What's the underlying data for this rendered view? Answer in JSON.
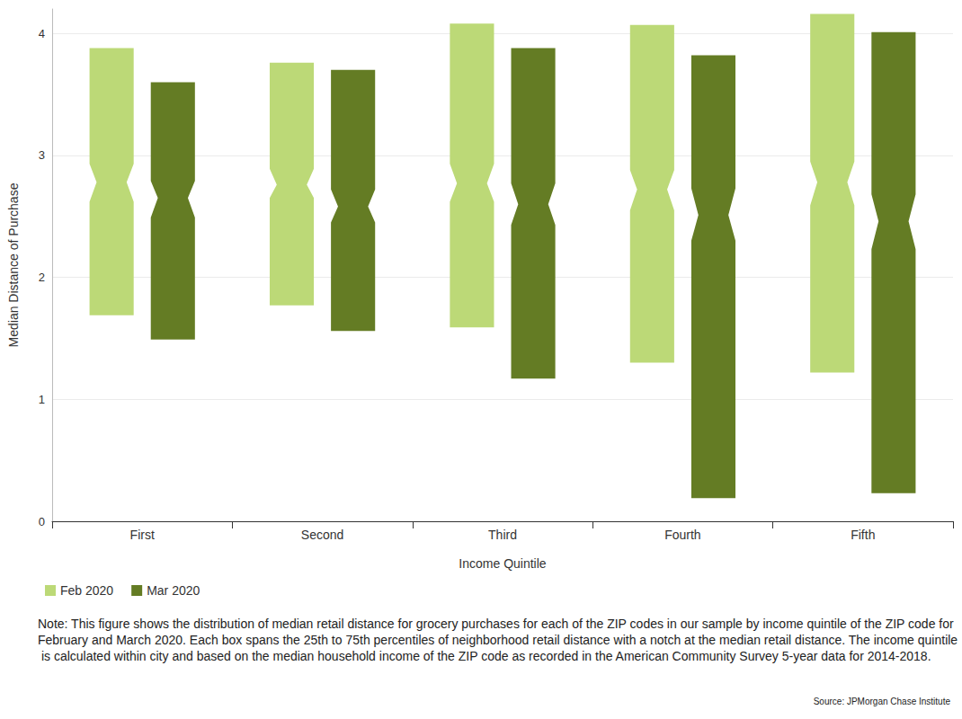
{
  "chart_data": {
    "type": "boxplot",
    "x_label": "Income Quintile",
    "y_label": "Median Distance of Purchase",
    "categories": [
      "First",
      "Second",
      "Third",
      "Fourth",
      "Fifth"
    ],
    "series": [
      {
        "name": "Feb 2020",
        "color": "#bcd977",
        "values": [
          {
            "q1": 1.69,
            "notch_low": 2.62,
            "median": 2.78,
            "notch_high": 2.93,
            "q3": 3.88
          },
          {
            "q1": 1.77,
            "notch_low": 2.65,
            "median": 2.76,
            "notch_high": 2.89,
            "q3": 3.76
          },
          {
            "q1": 1.59,
            "notch_low": 2.62,
            "median": 2.77,
            "notch_high": 2.93,
            "q3": 4.08
          },
          {
            "q1": 1.3,
            "notch_low": 2.55,
            "median": 2.72,
            "notch_high": 2.88,
            "q3": 4.07
          },
          {
            "q1": 1.22,
            "notch_low": 2.59,
            "median": 2.78,
            "notch_high": 2.95,
            "q3": 4.16
          }
        ]
      },
      {
        "name": "Mar 2020",
        "color": "#647c24",
        "values": [
          {
            "q1": 1.49,
            "notch_low": 2.49,
            "median": 2.65,
            "notch_high": 2.79,
            "q3": 3.6
          },
          {
            "q1": 1.56,
            "notch_low": 2.45,
            "median": 2.58,
            "notch_high": 2.72,
            "q3": 3.7
          },
          {
            "q1": 1.17,
            "notch_low": 2.43,
            "median": 2.6,
            "notch_high": 2.77,
            "q3": 3.88
          },
          {
            "q1": 0.19,
            "notch_low": 2.3,
            "median": 2.51,
            "notch_high": 2.73,
            "q3": 3.82
          },
          {
            "q1": 0.23,
            "notch_low": 2.23,
            "median": 2.46,
            "notch_high": 2.68,
            "q3": 4.01
          }
        ]
      }
    ],
    "ylim": [
      0,
      4.2
    ],
    "yticks": [
      0,
      1,
      2,
      3,
      4
    ],
    "grid": true,
    "legend": "bottom-left",
    "note": "Note: This figure shows the distribution of median retail distance for grocery purchases for each of the ZIP codes in our sample by income quintile of the ZIP code for February and March 2020. Each box spans the 25th to 75th percentiles of neighborhood retail distance with a notch at the median retail distance. The income quintile is calculated within city and based on the median household income of the ZIP code as recorded in the American Community Survey 5-year data for 2014-2018.",
    "source": "Source: JPMorgan Chase Institute"
  }
}
